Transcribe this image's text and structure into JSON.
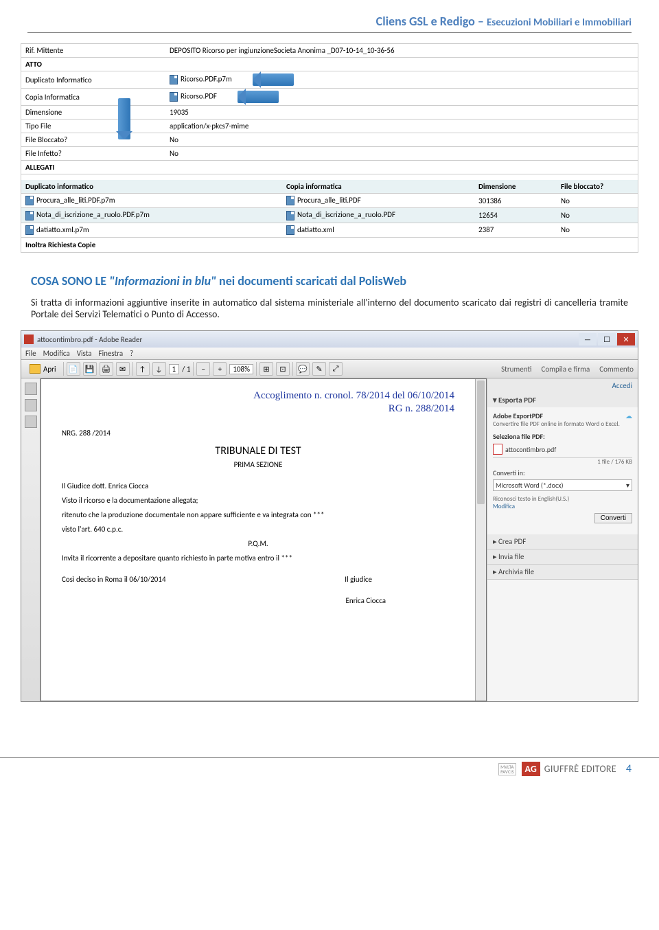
{
  "header": {
    "title1": "Cliens GSL e Redigo – ",
    "title2": "Esecuzioni Mobiliari e Immobiliari"
  },
  "upper": {
    "rows": [
      {
        "label": "Rif. Mittente",
        "value": "DEPOSITO Ricorso per ingiunzioneSocieta Anonima _D07-10-14_10-36-56"
      },
      {
        "label": "ATTO",
        "value": "",
        "section": true
      },
      {
        "label": "Duplicato Informatico",
        "value": "Ricorso.PDF.p7m",
        "icon": true,
        "arrow": true
      },
      {
        "label": "Copia Informatica",
        "value": "Ricorso.PDF",
        "icon": true,
        "arrow": true
      },
      {
        "label": "Dimensione",
        "value": "19035"
      },
      {
        "label": "Tipo File",
        "value": "application/x-pkcs7-mime"
      },
      {
        "label": "File Bloccato?",
        "value": "No"
      },
      {
        "label": "File Infetto?",
        "value": "No"
      },
      {
        "label": "ALLEGATI",
        "value": "",
        "section": true
      }
    ],
    "headers": [
      "Duplicato informatico",
      "Copia informatica",
      "Dimensione",
      "File bloccato?"
    ],
    "attachments": [
      {
        "dup": "Procura_alle_liti.PDF.p7m",
        "copia": "Procura_alle_liti.PDF",
        "dim": "301386",
        "blk": "No"
      },
      {
        "dup": "Nota_di_iscrizione_a_ruolo.PDF.p7m",
        "copia": "Nota_di_iscrizione_a_ruolo.PDF",
        "dim": "12654",
        "blk": "No",
        "alt": true
      },
      {
        "dup": "datiatto.xml.p7m",
        "copia": "datiatto.xml",
        "dim": "2387",
        "blk": "No"
      }
    ],
    "inoltra": "Inoltra Richiesta Copie"
  },
  "bodytext": {
    "title": "COSA SONO LE \"Informazioni in blu\" nei documenti scaricati dal PolisWeb",
    "para": "Si tratta di informazioni aggiuntive inserite in automatico dal sistema ministeriale all'interno del documento scaricato dai registri di cancelleria tramite Portale dei Servizi Telematici o Punto di Accesso."
  },
  "reader": {
    "title": "attocontimbro.pdf - Adobe Reader",
    "menu": [
      "File",
      "Modifica",
      "Vista",
      "Finestra",
      "?"
    ],
    "toolbar": {
      "open": "Apri",
      "page_cur": "1",
      "page_of": "/ 1",
      "zoom": "108%",
      "right": [
        "Strumenti",
        "Compila e firma",
        "Commento"
      ]
    },
    "pdf": {
      "stamp1": "Accoglimento n. cronol. 78/2014 del 06/10/2014",
      "stamp2": "RG n. 288/2014",
      "nrg": "NRG. 288 /2014",
      "tribunale": "TRIBUNALE DI TEST",
      "sezione": "PRIMA SEZIONE",
      "p1": "Il Giudice dott. Enrica  Ciocca",
      "p2": "Visto il ricorso e la documentazione allegata;",
      "p3": "ritenuto che la produzione documentale non appare sufficiente e va integrata con ***",
      "p4": "visto l'art. 640 c.p.c.",
      "pqm": "P.Q.M.",
      "p5": "Invita il ricorrente a depositare quanto richiesto in parte motiva entro il ***",
      "p6": "Così deciso in Roma il 06/10/2014",
      "sig1": "Il giudice",
      "sig2": "Enrica  Ciocca"
    },
    "export": {
      "accedi": "Accedi",
      "expTitle": "Esporta PDF",
      "adobe": "Adobe ExportPDF",
      "sub": "Convertire file PDF online in formato Word o Excel.",
      "selLabel": "Seleziona file PDF:",
      "file": "attocontimbro.pdf",
      "fileMeta": "1 file / 176 KB",
      "convLabel": "Converti in:",
      "convOpt": "Microsoft Word (*.docx)",
      "ocr": "Riconosci testo in English(U.S.)",
      "modifica": "Modifica",
      "convBtn": "Converti",
      "panels": [
        "Crea PDF",
        "Invia file",
        "Archivia file"
      ]
    }
  },
  "footer": {
    "mvlta": "MVLTA PAVCIS",
    "brand": "GIUFFRÈ EDITORE",
    "page": "4"
  }
}
